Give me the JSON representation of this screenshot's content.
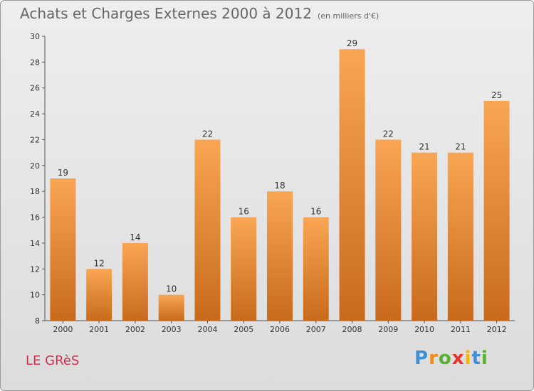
{
  "chart_data": {
    "type": "bar",
    "title": "Achats et Charges Externes 2000 à 2012",
    "subtitle": "(en milliers d'€)",
    "categories": [
      "2000",
      "2001",
      "2002",
      "2003",
      "2004",
      "2005",
      "2006",
      "2007",
      "2008",
      "2009",
      "2010",
      "2011",
      "2012"
    ],
    "values": [
      19,
      12,
      14,
      10,
      22,
      16,
      18,
      16,
      29,
      22,
      21,
      21,
      25
    ],
    "data_labels": [
      "19",
      "12",
      "14",
      "10",
      "22",
      "16",
      "18",
      "16",
      "29",
      "22",
      "21",
      "21",
      "25"
    ],
    "ylim": [
      8,
      30
    ],
    "yticks": [
      8,
      10,
      12,
      14,
      16,
      18,
      20,
      22,
      24,
      26,
      28,
      30
    ],
    "grid": false,
    "bar_color_top": "#f9a654",
    "bar_color_bottom": "#c86a1c"
  },
  "commune": "LE GRèS",
  "logo": {
    "letters": [
      "P",
      "r",
      "o",
      "x",
      "i",
      "t",
      "i"
    ],
    "colors": [
      "#3d8fd6",
      "#f08a1c",
      "#5bb030",
      "#e8332a",
      "#f4b400",
      "#3d8fd6",
      "#5bb030"
    ]
  }
}
